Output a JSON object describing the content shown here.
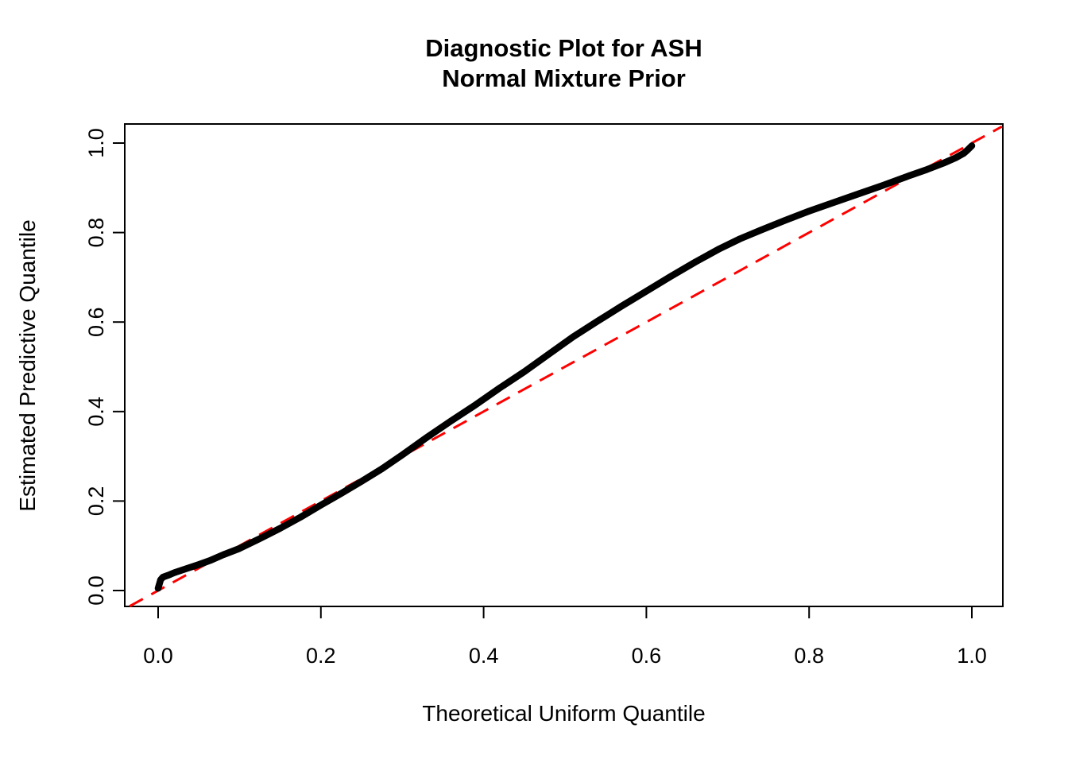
{
  "figure": {
    "background_color": "#FFFFFF",
    "axis_color": "#000000"
  },
  "chart_data": {
    "type": "line",
    "subtype": "qq-plot-diagnostic",
    "title_line1": "Diagnostic Plot for ASH",
    "title_line2": "Normal Mixture Prior",
    "xlabel": "Theoretical Uniform Quantile",
    "ylabel": "Estimated Predictive Quantile",
    "xlim": [
      -0.041,
      1.038
    ],
    "ylim": [
      -0.035,
      1.037
    ],
    "grid": false,
    "x_ticks": [
      0.0,
      0.2,
      0.4,
      0.6,
      0.8,
      1.0
    ],
    "x_tick_labels": [
      "0.0",
      "0.2",
      "0.4",
      "0.6",
      "0.8",
      "1.0"
    ],
    "y_ticks": [
      0.0,
      0.2,
      0.4,
      0.6,
      0.8,
      1.0
    ],
    "y_tick_labels": [
      "0.0",
      "0.2",
      "0.4",
      "0.6",
      "0.8",
      "1.0"
    ],
    "series": [
      {
        "name": "estimated-predictive-quantile-curve",
        "style": "thick-solid",
        "color": "#000000",
        "points": [
          [
            0.0,
            0.005
          ],
          [
            0.003,
            0.024
          ],
          [
            0.006,
            0.03
          ],
          [
            0.012,
            0.034
          ],
          [
            0.02,
            0.04
          ],
          [
            0.035,
            0.049
          ],
          [
            0.05,
            0.058
          ],
          [
            0.065,
            0.068
          ],
          [
            0.08,
            0.08
          ],
          [
            0.1,
            0.094
          ],
          [
            0.125,
            0.116
          ],
          [
            0.15,
            0.139
          ],
          [
            0.175,
            0.164
          ],
          [
            0.2,
            0.191
          ],
          [
            0.225,
            0.217
          ],
          [
            0.25,
            0.244
          ],
          [
            0.275,
            0.272
          ],
          [
            0.3,
            0.303
          ],
          [
            0.33,
            0.342
          ],
          [
            0.36,
            0.379
          ],
          [
            0.39,
            0.415
          ],
          [
            0.42,
            0.453
          ],
          [
            0.45,
            0.489
          ],
          [
            0.48,
            0.528
          ],
          [
            0.51,
            0.567
          ],
          [
            0.54,
            0.602
          ],
          [
            0.57,
            0.636
          ],
          [
            0.6,
            0.669
          ],
          [
            0.63,
            0.702
          ],
          [
            0.66,
            0.734
          ],
          [
            0.69,
            0.764
          ],
          [
            0.715,
            0.786
          ],
          [
            0.74,
            0.805
          ],
          [
            0.77,
            0.827
          ],
          [
            0.8,
            0.848
          ],
          [
            0.83,
            0.867
          ],
          [
            0.86,
            0.886
          ],
          [
            0.89,
            0.905
          ],
          [
            0.92,
            0.925
          ],
          [
            0.945,
            0.941
          ],
          [
            0.965,
            0.955
          ],
          [
            0.98,
            0.967
          ],
          [
            0.99,
            0.977
          ],
          [
            0.995,
            0.985
          ],
          [
            1.0,
            0.994
          ]
        ]
      },
      {
        "name": "identity-reference-line",
        "style": "dashed",
        "color": "#FF0000",
        "points": [
          [
            -0.035,
            -0.035
          ],
          [
            1.037,
            1.037
          ]
        ]
      }
    ]
  }
}
